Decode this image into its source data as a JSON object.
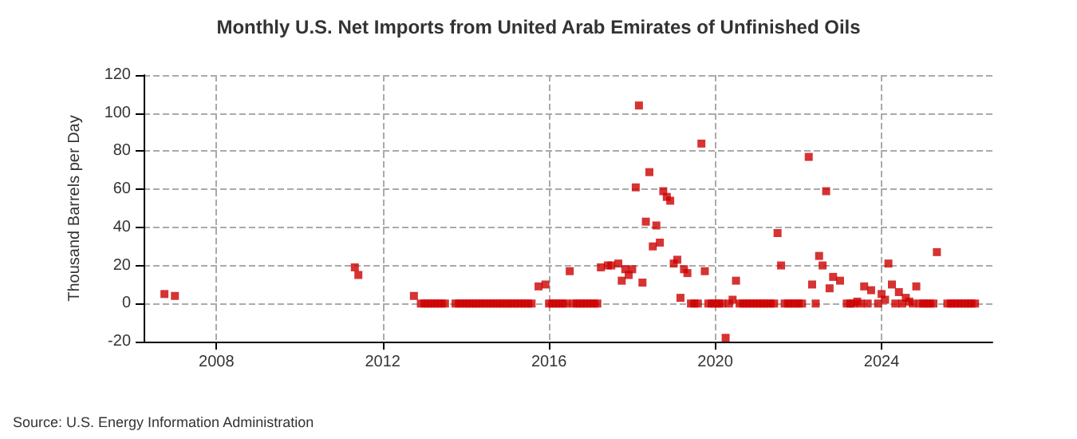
{
  "chart_data": {
    "type": "scatter",
    "title": "Monthly U.S. Net Imports from United Arab Emirates of Unfinished Oils",
    "ylabel": "Thousand Barrels per Day",
    "annotations": [
      "Source: U.S. Energy Information Administration"
    ],
    "xlim": [
      "2006-04",
      "2026-09"
    ],
    "xticks": [
      "2008",
      "2012",
      "2016",
      "2020",
      "2024"
    ],
    "ylim": [
      -20,
      120
    ],
    "yticks": [
      -20,
      0,
      20,
      40,
      60,
      80,
      100,
      120
    ],
    "grid": true,
    "marker": "square",
    "series": [
      {
        "color": "#cc0000",
        "x": [
          "2006-10",
          "2007-01",
          "2011-05",
          "2011-06",
          "2012-10",
          "2012-12",
          "2013-01",
          "2013-02",
          "2013-03",
          "2013-04",
          "2013-05",
          "2013-06",
          "2013-07",
          "2013-10",
          "2013-11",
          "2013-12",
          "2014-01",
          "2014-02",
          "2014-03",
          "2014-04",
          "2014-05",
          "2014-06",
          "2014-07",
          "2014-08",
          "2014-09",
          "2014-10",
          "2014-11",
          "2014-12",
          "2015-01",
          "2015-02",
          "2015-03",
          "2015-04",
          "2015-05",
          "2015-06",
          "2015-07",
          "2015-08",
          "2015-10",
          "2015-12",
          "2016-01",
          "2016-02",
          "2016-03",
          "2016-04",
          "2016-05",
          "2016-06",
          "2016-07",
          "2016-08",
          "2016-09",
          "2016-10",
          "2016-11",
          "2016-12",
          "2017-01",
          "2017-02",
          "2017-03",
          "2017-04",
          "2017-06",
          "2017-07",
          "2017-09",
          "2017-10",
          "2017-11",
          "2017-12",
          "2018-01",
          "2018-02",
          "2018-03",
          "2018-04",
          "2018-05",
          "2018-06",
          "2018-07",
          "2018-08",
          "2018-09",
          "2018-10",
          "2018-11",
          "2018-12",
          "2019-01",
          "2019-02",
          "2019-03",
          "2019-04",
          "2019-05",
          "2019-06",
          "2019-07",
          "2019-08",
          "2019-09",
          "2019-10",
          "2019-11",
          "2019-12",
          "2020-01",
          "2020-02",
          "2020-03",
          "2020-04",
          "2020-05",
          "2020-06",
          "2020-07",
          "2020-08",
          "2020-09",
          "2020-10",
          "2020-11",
          "2020-12",
          "2021-01",
          "2021-02",
          "2021-03",
          "2021-04",
          "2021-05",
          "2021-06",
          "2021-07",
          "2021-08",
          "2021-09",
          "2021-10",
          "2021-11",
          "2021-12",
          "2022-01",
          "2022-02",
          "2022-04",
          "2022-05",
          "2022-06",
          "2022-07",
          "2022-08",
          "2022-09",
          "2022-10",
          "2022-11",
          "2023-01",
          "2023-03",
          "2023-04",
          "2023-05",
          "2023-06",
          "2023-07",
          "2023-08",
          "2023-09",
          "2023-10",
          "2023-12",
          "2024-01",
          "2024-02",
          "2024-03",
          "2024-04",
          "2024-05",
          "2024-06",
          "2024-07",
          "2024-08",
          "2024-09",
          "2024-10",
          "2024-11",
          "2024-12",
          "2025-01",
          "2025-02",
          "2025-03",
          "2025-04",
          "2025-05",
          "2025-08",
          "2025-09",
          "2025-10",
          "2025-11",
          "2025-12",
          "2026-01",
          "2026-02",
          "2026-03",
          "2026-04"
        ],
        "values": [
          5,
          4,
          19,
          15,
          4,
          0,
          0,
          0,
          0,
          0,
          0,
          0,
          0,
          0,
          0,
          0,
          0,
          0,
          0,
          0,
          0,
          0,
          0,
          0,
          0,
          0,
          0,
          0,
          0,
          0,
          0,
          0,
          0,
          0,
          0,
          0,
          9,
          10,
          0,
          0,
          0,
          0,
          0,
          0,
          17,
          0,
          0,
          0,
          0,
          0,
          0,
          0,
          0,
          19,
          20,
          20,
          21,
          12,
          18,
          15,
          18,
          61,
          104,
          11,
          43,
          69,
          30,
          41,
          32,
          59,
          56,
          54,
          21,
          23,
          3,
          18,
          16,
          0,
          0,
          0,
          84,
          17,
          0,
          0,
          0,
          0,
          0,
          -18,
          0,
          2,
          12,
          0,
          0,
          0,
          0,
          0,
          0,
          0,
          0,
          0,
          0,
          0,
          37,
          20,
          0,
          0,
          0,
          0,
          0,
          0,
          77,
          10,
          0,
          25,
          20,
          59,
          8,
          14,
          12,
          0,
          0,
          0,
          1,
          0,
          9,
          0,
          7,
          0,
          5,
          2,
          21,
          10,
          0,
          6,
          0,
          3,
          1,
          0,
          9,
          0,
          0,
          0,
          0,
          0,
          27,
          0,
          0,
          0,
          0,
          0,
          0,
          0,
          0,
          0
        ]
      }
    ]
  }
}
